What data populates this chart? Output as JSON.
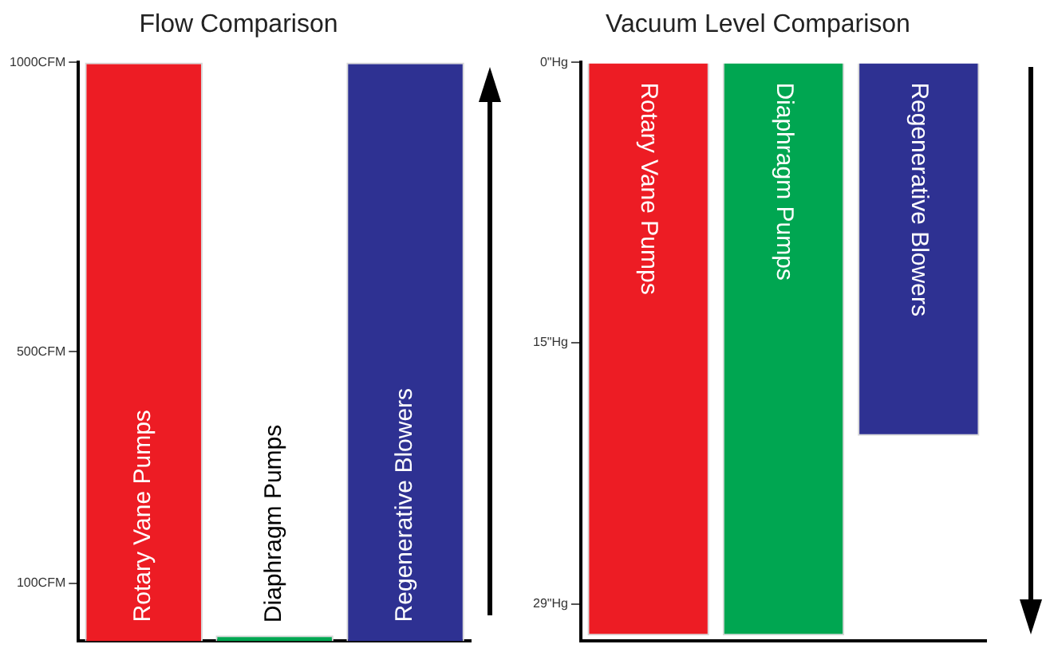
{
  "chart_data": [
    {
      "type": "bar",
      "title": "Flow Comparison",
      "categories": [
        "Rotary Vane Pumps",
        "Diaphragm Pumps",
        "Regenerative Blowers"
      ],
      "values": [
        1000,
        10,
        1000
      ],
      "colors": [
        "#ed1c24",
        "#00a651",
        "#2e3192"
      ],
      "ylim": [
        0,
        1000
      ],
      "yticks": [
        {
          "value": 100,
          "label": "100CFM"
        },
        {
          "value": 500,
          "label": "500CFM"
        },
        {
          "value": 1000,
          "label": "1000CFM"
        }
      ],
      "tick_labels": "y"
    },
    {
      "type": "bar",
      "title": "Vacuum Level Comparison",
      "categories": [
        "Rotary Vane Pumps",
        "Diaphragm Pumps",
        "Regenerative Blowers"
      ],
      "values": [
        30.7,
        30.7,
        20
      ],
      "colors": [
        "#ed1c24",
        "#00a651",
        "#2e3192"
      ],
      "ylim": [
        31,
        0
      ],
      "yticks": [
        {
          "value": 0,
          "label": "0\"Hg"
        },
        {
          "value": 15,
          "label": "15\"Hg"
        },
        {
          "value": 29,
          "label": "29\"Hg"
        }
      ],
      "tick_labels": "y"
    }
  ]
}
